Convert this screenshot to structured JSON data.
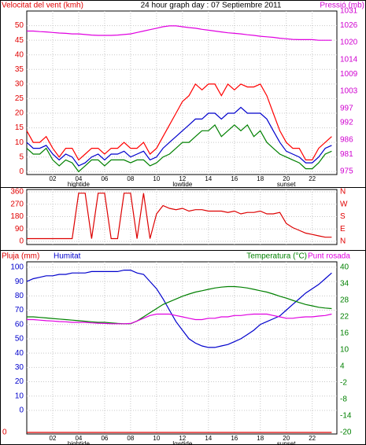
{
  "chart_data": [
    {
      "type": "line",
      "title": "24 hour graph day : 07 Septiembre 2011",
      "ylabel": "Velocitat del vent (kmh)",
      "y2label": "Pressió (mb)",
      "ycolor": "#e00000",
      "y2color": "#d000d0",
      "x": [
        0,
        0.5,
        1,
        1.5,
        2,
        2.5,
        3,
        3.5,
        4,
        4.5,
        5,
        5.5,
        6,
        6.5,
        7,
        7.5,
        8,
        8.5,
        9,
        9.5,
        10,
        10.5,
        11,
        11.5,
        12,
        12.5,
        13,
        13.5,
        14,
        14.5,
        15,
        15.5,
        16,
        16.5,
        17,
        17.5,
        18,
        18.5,
        19,
        19.5,
        20,
        20.5,
        21,
        21.5,
        22,
        22.5,
        23,
        23.5
      ],
      "xlim": [
        0,
        23.9
      ],
      "xticks": [
        {
          "value": 2,
          "label": "02"
        },
        {
          "value": 4,
          "label": "04"
        },
        {
          "value": 6,
          "label": "06"
        },
        {
          "value": 8,
          "label": "08"
        },
        {
          "value": 10,
          "label": "10"
        },
        {
          "value": 12,
          "label": "12"
        },
        {
          "value": 14,
          "label": "14"
        },
        {
          "value": 16,
          "label": "16"
        },
        {
          "value": 18,
          "label": "18"
        },
        {
          "value": 20,
          "label": "20"
        },
        {
          "value": 22,
          "label": "22"
        }
      ],
      "annotations": [
        {
          "x": 4,
          "text": "hightide"
        },
        {
          "x": 12,
          "text": "lowtide"
        },
        {
          "x": 20,
          "text": "sunset"
        }
      ],
      "ylim": [
        -1,
        55
      ],
      "yticks": [
        0,
        5,
        10,
        15,
        20,
        25,
        30,
        35,
        40,
        45,
        50
      ],
      "y2lim": [
        973.9,
        1031
      ],
      "y2ticks": [
        975,
        981,
        986,
        992,
        997,
        1003,
        1009,
        1014,
        1020,
        1026,
        1031
      ],
      "grid": true,
      "series": [
        {
          "color": "#ff0000",
          "values": [
            14,
            10,
            10,
            12,
            8,
            5,
            8,
            8,
            4,
            6,
            8,
            8,
            6,
            8,
            8,
            10,
            8,
            8,
            10,
            6,
            8,
            12,
            16,
            20,
            24,
            26,
            30,
            28,
            30,
            30,
            26,
            30,
            28,
            30,
            29,
            29,
            30,
            26,
            20,
            14,
            10,
            8,
            8,
            4,
            4,
            8,
            10,
            12
          ]
        },
        {
          "color": "#008000",
          "values": [
            8,
            6,
            6,
            8,
            4,
            2,
            4,
            3,
            0,
            2,
            4,
            4,
            2,
            4,
            4,
            4,
            3,
            4,
            4,
            2,
            3,
            5,
            6,
            8,
            10,
            10,
            12,
            14,
            14,
            16,
            12,
            14,
            16,
            14,
            16,
            12,
            14,
            10,
            8,
            6,
            5,
            4,
            3,
            1,
            1,
            3,
            6,
            7
          ]
        },
        {
          "color": "#0000cc",
          "values": [
            10,
            8,
            8,
            9,
            6,
            4,
            6,
            5,
            2,
            3,
            5,
            6,
            4,
            6,
            6,
            7,
            5,
            6,
            7,
            4,
            5,
            8,
            10,
            12,
            14,
            16,
            18,
            18,
            20,
            20,
            18,
            20,
            20,
            22,
            20,
            20,
            20,
            18,
            14,
            10,
            7,
            6,
            5,
            3,
            3,
            5,
            8,
            9
          ]
        },
        {
          "color": "#e000e0",
          "axis": "y2",
          "values": [
            1024,
            1024,
            1023.8,
            1023.7,
            1023.5,
            1023.3,
            1023.2,
            1023,
            1023,
            1022.8,
            1022.6,
            1022.5,
            1022.5,
            1022.5,
            1022.6,
            1022.8,
            1023,
            1023.5,
            1024,
            1024.5,
            1025,
            1025.5,
            1025.8,
            1025.8,
            1025.5,
            1025.2,
            1025,
            1024.6,
            1024.3,
            1024,
            1023.7,
            1023.4,
            1023.2,
            1023,
            1022.7,
            1022.5,
            1022.2,
            1022,
            1021.8,
            1021.5,
            1021.3,
            1021.1,
            1021,
            1021,
            1021,
            1020.8,
            1020.8,
            1020.8
          ]
        }
      ]
    },
    {
      "type": "line",
      "ycolor": "#e00000",
      "y2color": "#e00000",
      "x": [
        0,
        0.5,
        1,
        1.5,
        2,
        2.5,
        3,
        3.5,
        4,
        4.5,
        5,
        5.5,
        6,
        6.5,
        7,
        7.5,
        8,
        8.5,
        9,
        9.5,
        10,
        10.5,
        11,
        11.5,
        12,
        12.5,
        13,
        13.5,
        14,
        14.5,
        15,
        15.5,
        16,
        16.5,
        17,
        17.5,
        18,
        18.5,
        19,
        19.5,
        20,
        20.5,
        21,
        21.5,
        22,
        22.5,
        23,
        23.5
      ],
      "xlim": [
        0,
        23.9
      ],
      "xticks": [
        2,
        4,
        6,
        8,
        10,
        12,
        14,
        16,
        18,
        20,
        22
      ],
      "xtick_labels": false,
      "ylim": [
        -23,
        377
      ],
      "yticks": [
        0,
        90,
        180,
        270,
        360
      ],
      "y2lim": [
        -23,
        377
      ],
      "y2ticks": [
        {
          "value": 0,
          "label": "N"
        },
        {
          "value": 90,
          "label": "E"
        },
        {
          "value": 180,
          "label": "S"
        },
        {
          "value": 270,
          "label": "W"
        },
        {
          "value": 360,
          "label": "N"
        }
      ],
      "grid": true,
      "series": [
        {
          "color": "#dd0000",
          "values": [
            20,
            20,
            20,
            20,
            20,
            20,
            20,
            20,
            350,
            350,
            20,
            350,
            350,
            20,
            20,
            350,
            350,
            20,
            350,
            20,
            200,
            260,
            240,
            230,
            240,
            220,
            230,
            230,
            220,
            220,
            220,
            210,
            220,
            200,
            210,
            210,
            220,
            200,
            200,
            210,
            130,
            100,
            80,
            60,
            50,
            40,
            30,
            30
          ]
        }
      ]
    },
    {
      "type": "line",
      "ycolor": "#0000cc",
      "y2color": "#008000",
      "y3color": "#e00000",
      "x": [
        0,
        0.5,
        1,
        1.5,
        2,
        2.5,
        3,
        3.5,
        4,
        4.5,
        5,
        5.5,
        6,
        6.5,
        7,
        7.5,
        8,
        8.5,
        9,
        9.5,
        10,
        10.5,
        11,
        11.5,
        12,
        12.5,
        13,
        13.5,
        14,
        14.5,
        15,
        15.5,
        16,
        16.5,
        17,
        17.5,
        18,
        18.5,
        19,
        19.5,
        20,
        20.5,
        21,
        21.5,
        22,
        22.5,
        23,
        23.5
      ],
      "xlim": [
        0,
        23.9
      ],
      "xticks": [
        {
          "value": 2,
          "label": "02"
        },
        {
          "value": 4,
          "label": "04"
        },
        {
          "value": 6,
          "label": "06"
        },
        {
          "value": 8,
          "label": "08"
        },
        {
          "value": 10,
          "label": "10"
        },
        {
          "value": 12,
          "label": "12"
        },
        {
          "value": 14,
          "label": "14"
        },
        {
          "value": 16,
          "label": "16"
        },
        {
          "value": 18,
          "label": "18"
        },
        {
          "value": 20,
          "label": "20"
        },
        {
          "value": 22,
          "label": "22"
        }
      ],
      "annotations": [
        {
          "x": 4,
          "text": "hightide"
        },
        {
          "x": 12,
          "text": "lowtide"
        },
        {
          "x": 20,
          "text": "sunset"
        }
      ],
      "ylim": [
        -16.5,
        103.8
      ],
      "yticks": [
        0,
        10,
        20,
        30,
        40,
        50,
        60,
        70,
        80,
        90,
        100
      ],
      "y2lim": [
        -20.57,
        42
      ],
      "y2ticks": [
        -20,
        -14,
        -8,
        -2,
        4,
        10,
        16,
        22,
        28,
        34,
        40
      ],
      "y3lim": [
        -0.028,
        3
      ],
      "y3ticks": [
        0
      ],
      "grid": true,
      "series": [
        {
          "name": "Pluja (mm)",
          "color": "#dd0000",
          "axis": "y3",
          "values": [
            0,
            0,
            0,
            0,
            0,
            0,
            0,
            0,
            0,
            0,
            0,
            0,
            0,
            0,
            0,
            0,
            0,
            0,
            0,
            0,
            0,
            0,
            0,
            0,
            0,
            0,
            0,
            0,
            0,
            0,
            0,
            0,
            0,
            0,
            0,
            0,
            0,
            0,
            0,
            0,
            0,
            0,
            0,
            0,
            0,
            0,
            0,
            0
          ]
        },
        {
          "name": "Humitat",
          "color": "#0000cc",
          "values": [
            90,
            92,
            93,
            94,
            94,
            95,
            95,
            96,
            96,
            96,
            97,
            97,
            97,
            97,
            97,
            98,
            98,
            96,
            95,
            90,
            85,
            78,
            70,
            62,
            56,
            50,
            47,
            45,
            44,
            44,
            45,
            46,
            48,
            50,
            53,
            56,
            60,
            62,
            64,
            66,
            70,
            74,
            78,
            82,
            85,
            88,
            92,
            96
          ]
        },
        {
          "name": "Temperatura (°C)",
          "color": "#008000",
          "axis": "y2",
          "values": [
            22,
            22,
            21.8,
            21.6,
            21.4,
            21.2,
            21,
            20.8,
            20.6,
            20.4,
            20.2,
            20,
            20,
            19.8,
            19.6,
            19.5,
            19.5,
            20.5,
            22,
            23.5,
            25,
            26.5,
            27.5,
            28.5,
            29.5,
            30.3,
            31,
            31.5,
            32,
            32.5,
            32.8,
            33,
            33,
            32.8,
            32.5,
            32,
            31.5,
            31,
            30.3,
            29.5,
            28.8,
            28,
            27.2,
            26.5,
            26,
            25.5,
            25.2,
            25
          ]
        },
        {
          "name": "Punt rosada",
          "color": "#e000e0",
          "axis": "y2",
          "values": [
            21,
            21,
            20.8,
            20.6,
            20.5,
            20.3,
            20.2,
            20,
            20,
            20,
            19.8,
            19.7,
            19.6,
            19.5,
            19.5,
            19.5,
            19.6,
            20.5,
            21.5,
            22.5,
            23,
            23,
            23,
            22.5,
            22,
            21.5,
            21,
            21,
            21.5,
            21.5,
            22,
            22,
            22.5,
            22.5,
            22.8,
            23,
            23,
            23,
            22.5,
            22,
            21.5,
            21.5,
            21.8,
            22,
            22,
            22.3,
            22.5,
            23
          ]
        }
      ]
    }
  ]
}
